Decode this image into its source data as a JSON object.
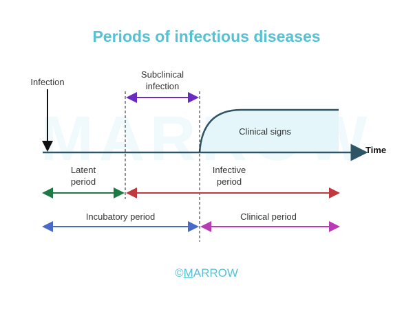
{
  "title": "Periods of infectious diseases",
  "watermark": "MARROW",
  "labels": {
    "infection": "Infection",
    "subclinical": "Subclinical infection",
    "subclinical_line1": "Subclinical",
    "subclinical_line2": "infection",
    "time": "Time",
    "clinical_signs": "Clinical signs",
    "latent_line1": "Latent",
    "latent_line2": "period",
    "infective_line1": "Infective",
    "infective_line2": "period",
    "incubatory": "Incubatory period",
    "clinical_period": "Clinical period"
  },
  "footer": {
    "copyright": "©",
    "brand_first": "M",
    "brand_rest": "ARROW"
  },
  "colors": {
    "title": "#56c1d3",
    "axis": "#2e5566",
    "subclinical": "#6a2bc0",
    "latent": "#1d7a45",
    "infective": "#c0393e",
    "incubatory": "#4a6ac8",
    "clinical": "#b83ab4",
    "clinical_fill": "#e4f6f9"
  }
}
